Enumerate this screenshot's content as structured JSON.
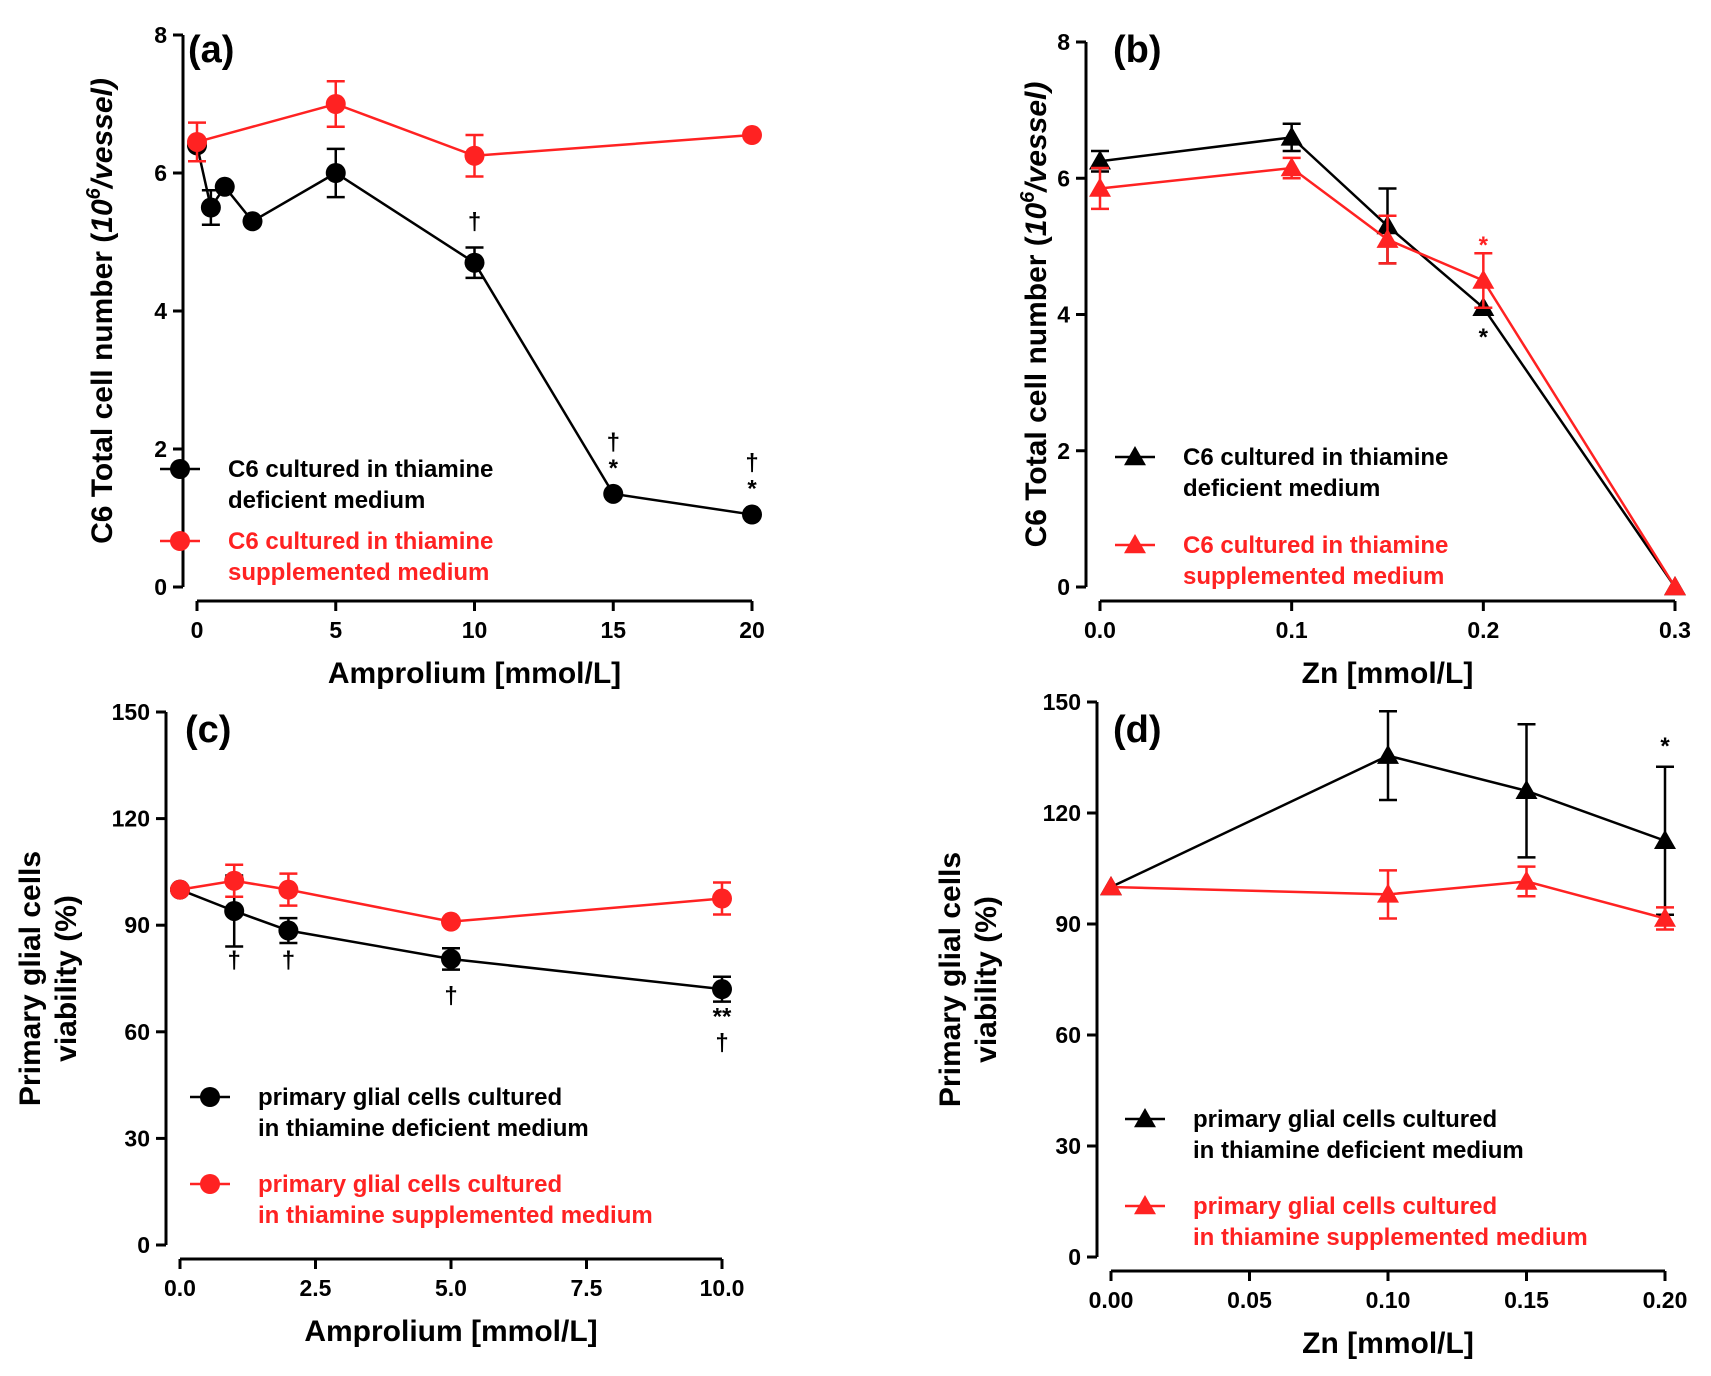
{
  "colors": {
    "black": "#000000",
    "red": "#ff2222"
  },
  "chart_data": [
    {
      "id": "a",
      "type": "line",
      "label": "(a)",
      "xlabel": "Amprolium [mmol/L]",
      "ylabel_prefix": "C6 Total cell number (",
      "ylabel_unit_base": "10",
      "ylabel_unit_sup": "6",
      "ylabel_unit_rest": "/vessel)",
      "xlim": [
        0,
        20
      ],
      "ylim": [
        0,
        8
      ],
      "xticks": [
        0,
        5,
        10,
        15,
        20
      ],
      "xtick_labels": [
        "0",
        "5",
        "10",
        "15",
        "20"
      ],
      "yticks": [
        0,
        2,
        4,
        6,
        8
      ],
      "ytick_labels": [
        "0",
        "2",
        "4",
        "6",
        "8"
      ],
      "marker": "circle",
      "legend_placement": "bottom-left",
      "series": [
        {
          "name": "C6 cultured in thiamine deficient medium",
          "legend_lines": [
            "C6 cultured in thiamine",
            "deficient medium"
          ],
          "color": "black",
          "x": [
            0,
            0.5,
            1,
            2,
            5,
            10,
            15,
            20
          ],
          "y": [
            6.4,
            5.5,
            5.8,
            5.3,
            6.0,
            4.7,
            1.35,
            1.05
          ],
          "err": [
            0,
            0.25,
            0,
            0,
            0.35,
            0.22,
            0,
            0
          ]
        },
        {
          "name": "C6 cultured in thiamine supplemented medium",
          "legend_lines": [
            "C6 cultured in thiamine",
            "supplemented medium"
          ],
          "color": "red",
          "x": [
            0,
            5,
            10,
            20
          ],
          "y": [
            6.45,
            7.0,
            6.25,
            6.55
          ],
          "err": [
            0.28,
            0.33,
            0.3,
            0
          ]
        }
      ],
      "annotations": [
        {
          "x": 10,
          "lines": [
            "†"
          ],
          "color": "black"
        },
        {
          "x": 15,
          "lines": [
            "†",
            "*"
          ],
          "color": "black"
        },
        {
          "x": 20,
          "lines": [
            "†",
            "*"
          ],
          "color": "black"
        }
      ]
    },
    {
      "id": "b",
      "type": "line",
      "label": "(b)",
      "xlabel": "Zn [mmol/L]",
      "ylabel_prefix": "C6 Total cell number (",
      "ylabel_unit_base": "10",
      "ylabel_unit_sup": "6",
      "ylabel_unit_rest": "/vessel)",
      "xlim": [
        0,
        0.3
      ],
      "ylim": [
        0,
        8
      ],
      "xticks": [
        0,
        0.1,
        0.2,
        0.3
      ],
      "xtick_labels": [
        "0.0",
        "0.1",
        "0.2",
        "0.3"
      ],
      "yticks": [
        0,
        2,
        4,
        6,
        8
      ],
      "ytick_labels": [
        "0",
        "2",
        "4",
        "6",
        "8"
      ],
      "marker": "triangle",
      "legend_placement": "bottom-left",
      "series": [
        {
          "name": "C6 cultured in thiamine deficient medium",
          "legend_lines": [
            "C6 cultured in thiamine",
            "deficient medium"
          ],
          "color": "black",
          "x": [
            0,
            0.1,
            0.15,
            0.2,
            0.3
          ],
          "y": [
            6.25,
            6.6,
            5.3,
            4.1,
            0
          ],
          "err": [
            0.15,
            0.2,
            0.55,
            0,
            0
          ]
        },
        {
          "name": "C6 cultured in thiamine supplemented medium",
          "legend_lines": [
            "C6 cultured in thiamine",
            "supplemented medium"
          ],
          "color": "red",
          "x": [
            0,
            0.1,
            0.15,
            0.2,
            0.3
          ],
          "y": [
            5.85,
            6.15,
            5.1,
            4.5,
            0
          ],
          "err": [
            0.3,
            0.15,
            0.35,
            0.4,
            0
          ]
        }
      ],
      "annotations": [
        {
          "x": 0.2,
          "y": 4.9,
          "lines": [
            "*"
          ],
          "color": "red"
        },
        {
          "x": 0.2,
          "y": 3.55,
          "lines": [
            "*"
          ],
          "color": "black"
        }
      ]
    },
    {
      "id": "c",
      "type": "line",
      "label": "(c)",
      "xlabel": "Amprolium [mmol/L]",
      "ylabel_lines": [
        "Primary glial cells",
        "viability (%)"
      ],
      "xlim": [
        0,
        10
      ],
      "ylim": [
        0,
        150
      ],
      "xticks": [
        0,
        2.5,
        5,
        7.5,
        10
      ],
      "xtick_labels": [
        "0.0",
        "2.5",
        "5.0",
        "7.5",
        "10.0"
      ],
      "yticks": [
        0,
        30,
        60,
        90,
        120,
        150
      ],
      "ytick_labels": [
        "0",
        "30",
        "60",
        "90",
        "120",
        "150"
      ],
      "marker": "circle",
      "legend_placement": "bottom-left",
      "series": [
        {
          "name": "primary glial cells cultured in thiamine deficient medium",
          "legend_lines": [
            "primary glial cells cultured",
            "in thiamine deficient medium"
          ],
          "color": "black",
          "x": [
            0,
            1,
            2,
            5,
            10
          ],
          "y": [
            100,
            94,
            88.5,
            80.5,
            72
          ],
          "err": [
            0,
            10,
            3.5,
            3,
            3.5
          ]
        },
        {
          "name": "primary glial cells cultured in thiamine supplemented medium",
          "legend_lines": [
            "primary glial cells cultured",
            "in thiamine supplemented medium"
          ],
          "color": "red",
          "x": [
            0,
            1,
            2,
            5,
            10
          ],
          "y": [
            100,
            102.5,
            100,
            91,
            97.5
          ],
          "err": [
            0,
            4.5,
            4.5,
            0,
            4.5
          ]
        }
      ],
      "annotations": [
        {
          "x": 1,
          "y": 78,
          "lines": [
            "†"
          ],
          "color": "black"
        },
        {
          "x": 2,
          "y": 78,
          "lines": [
            "†"
          ],
          "color": "black"
        },
        {
          "x": 5,
          "y": 68,
          "lines": [
            "†"
          ],
          "color": "black"
        },
        {
          "x": 10,
          "y": 62,
          "lines": [
            "**",
            "†"
          ],
          "color": "black"
        }
      ]
    },
    {
      "id": "d",
      "type": "line",
      "label": "(d)",
      "xlabel": "Zn [mmol/L]",
      "ylabel_lines": [
        "Primary glial cells",
        "viability (%)"
      ],
      "xlim": [
        0,
        0.2
      ],
      "ylim": [
        0,
        150
      ],
      "xticks": [
        0,
        0.05,
        0.1,
        0.15,
        0.2
      ],
      "xtick_labels": [
        "0.00",
        "0.05",
        "0.10",
        "0.15",
        "0.20"
      ],
      "yticks": [
        0,
        30,
        60,
        90,
        120,
        150
      ],
      "ytick_labels": [
        "0",
        "30",
        "60",
        "90",
        "120",
        "150"
      ],
      "marker": "triangle",
      "legend_placement": "bottom-left",
      "series": [
        {
          "name": "primary glial cells cultured in thiamine deficient medium",
          "legend_lines": [
            "primary glial cells cultured",
            "in thiamine deficient medium"
          ],
          "color": "black",
          "x": [
            0,
            0.1,
            0.15,
            0.2
          ],
          "y": [
            100,
            135.5,
            126,
            112.5
          ],
          "err": [
            0,
            12,
            18,
            20
          ]
        },
        {
          "name": "primary glial cells cultured in thiamine supplemented medium",
          "legend_lines": [
            "primary glial cells cultured",
            "in thiamine supplemented medium"
          ],
          "color": "red",
          "x": [
            0,
            0.1,
            0.15,
            0.2
          ],
          "y": [
            100,
            98,
            101.5,
            91.5
          ],
          "err": [
            0,
            6.5,
            4,
            3
          ]
        }
      ],
      "annotations": [
        {
          "x": 0.2,
          "y": 136,
          "lines": [
            "*"
          ],
          "color": "black"
        }
      ]
    }
  ]
}
